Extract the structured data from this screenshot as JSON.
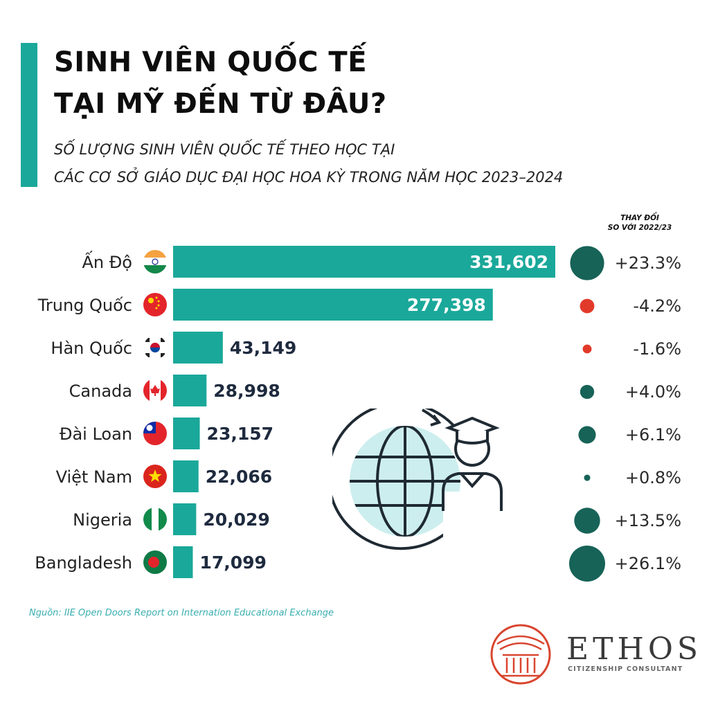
{
  "header": {
    "title_line1": "SINH VIÊN QUỐC TẾ",
    "title_line2": "TẠI MỸ ĐẾN TỪ ĐÂU?",
    "subtitle_line1": "SỐ LƯỢNG SINH VIÊN QUỐC TẾ THEO HỌC TẠI",
    "subtitle_line2": "CÁC CƠ SỞ GIÁO DỤC ĐẠI HỌC HOA KỲ TRONG NĂM HỌC 2023–2024",
    "change_header_line1": "THAY ĐỔI",
    "change_header_line2": "SO VỚI 2022/23"
  },
  "colors": {
    "bar": "#1aa89a",
    "positive": "#176358",
    "negative": "#e23a2a",
    "accent": "#1aa89a"
  },
  "chart_data": {
    "type": "bar",
    "categories": [
      "Ấn Độ",
      "Trung Quốc",
      "Hàn Quốc",
      "Canada",
      "Đài Loan",
      "Việt Nam",
      "Nigeria",
      "Bangladesh"
    ],
    "values": [
      331602,
      277398,
      43149,
      28998,
      23157,
      22066,
      20029,
      17099
    ],
    "value_labels": [
      "331,602",
      "277,398",
      "43,149",
      "28,998",
      "23,157",
      "22,066",
      "20,029",
      "17,099"
    ],
    "change_pct": [
      23.3,
      -4.2,
      -1.6,
      4.0,
      6.1,
      0.8,
      13.5,
      26.1
    ],
    "change_labels": [
      "+23.3%",
      "-4.2%",
      "-1.6%",
      "+4.0%",
      "+6.1%",
      "+0.8%",
      "+13.5%",
      "+26.1%"
    ],
    "flags": [
      "india-flag-icon",
      "china-flag-icon",
      "south-korea-flag-icon",
      "canada-flag-icon",
      "taiwan-flag-icon",
      "vietnam-flag-icon",
      "nigeria-flag-icon",
      "bangladesh-flag-icon"
    ],
    "orientation": "horizontal"
  },
  "graphic": {
    "icon": "globe-graduate-icon"
  },
  "footer": {
    "source": "Nguồn: IIE Open Doors Report on Internation Educational Exchange",
    "brand_name": "ETHOS",
    "brand_tagline": "CITIZENSHIP CONSULTANT"
  }
}
